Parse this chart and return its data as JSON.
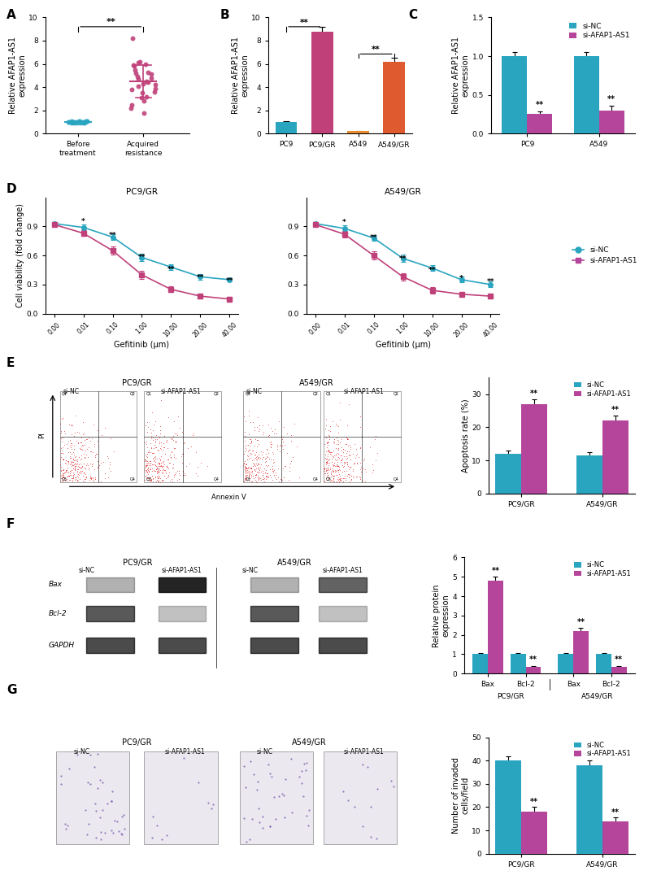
{
  "panel_A": {
    "before_treatment": [
      1.0,
      1.05,
      0.95,
      1.1,
      0.9,
      1.02,
      0.98,
      1.08,
      0.92,
      1.03,
      0.97,
      1.06,
      0.94,
      1.01,
      0.99,
      1.04,
      0.96,
      1.07,
      0.93,
      1.0
    ],
    "acquired_resistance": [
      3.2,
      5.8,
      4.1,
      6.2,
      3.5,
      4.8,
      5.2,
      2.8,
      6.0,
      3.8,
      4.5,
      5.5,
      2.5,
      4.2,
      3.9,
      5.1,
      4.7,
      8.2,
      4.4,
      3.1,
      5.9,
      4.3,
      2.2,
      3.6,
      4.9,
      5.3,
      6.1,
      1.8
    ],
    "color_before": "#2aa5c0",
    "color_acquired": "#c0417a",
    "ylabel": "Relative AFAP1-AS1\nexpression",
    "xlabel_before": "Before\ntreatment",
    "xlabel_acquired": "Acquired\nresistance",
    "ylim": [
      0,
      10
    ]
  },
  "panel_B": {
    "categories": [
      "PC9",
      "PC9/GR",
      "A549",
      "A549/GR"
    ],
    "values": [
      1.0,
      8.8,
      0.2,
      6.2
    ],
    "errors": [
      0.1,
      0.4,
      0.05,
      0.3
    ],
    "colors": [
      "#2aa5c0",
      "#c0417a",
      "#e88a2e",
      "#e05a30"
    ],
    "ylabel": "Relative AFAP1-AS1\nexpression",
    "ylim": [
      0,
      10
    ]
  },
  "panel_C": {
    "categories_main": [
      "PC9",
      "A549"
    ],
    "values_siNC": [
      1.0,
      1.0
    ],
    "values_siAFAP": [
      0.25,
      0.3
    ],
    "errors_siNC": [
      0.05,
      0.05
    ],
    "errors_siAFAP": [
      0.04,
      0.06
    ],
    "color_siNC": "#2aa5c0",
    "color_siAFAP": "#b5449b",
    "ylabel": "Relative AFAP1-AS1\nexpression",
    "ylim": [
      0.0,
      1.5
    ],
    "legend_siNC": "si-NC",
    "legend_siAFAP": "si-AFAP1-AS1"
  },
  "panel_D_PC9GR": {
    "gefitinib": [
      0.0,
      0.01,
      0.1,
      1.0,
      10.0,
      20.0,
      40.0
    ],
    "siNC": [
      0.93,
      0.89,
      0.79,
      0.58,
      0.48,
      0.38,
      0.35
    ],
    "siAFAP": [
      0.92,
      0.83,
      0.65,
      0.4,
      0.25,
      0.18,
      0.15
    ],
    "errors_siNC": [
      0.02,
      0.03,
      0.03,
      0.04,
      0.03,
      0.03,
      0.02
    ],
    "errors_siAFAP": [
      0.02,
      0.03,
      0.04,
      0.04,
      0.03,
      0.02,
      0.02
    ],
    "title": "PC9/GR",
    "xlabel": "Gefitinib (μm)",
    "ylabel": "Cell viability (fold change)",
    "color_siNC": "#2aa5c0",
    "color_siAFAP": "#c0417a",
    "sig_positions": [
      0.01,
      0.1,
      1.0,
      10.0,
      20.0,
      40.0
    ],
    "sig_labels": [
      "*",
      "**",
      "**",
      "**",
      "**",
      "**"
    ]
  },
  "panel_D_A549GR": {
    "gefitinib": [
      0.0,
      0.01,
      0.1,
      1.0,
      10.0,
      20.0,
      40.0
    ],
    "siNC": [
      0.93,
      0.88,
      0.78,
      0.57,
      0.47,
      0.35,
      0.3
    ],
    "siAFAP": [
      0.92,
      0.82,
      0.6,
      0.38,
      0.24,
      0.2,
      0.18
    ],
    "errors_siNC": [
      0.02,
      0.03,
      0.03,
      0.04,
      0.03,
      0.03,
      0.03
    ],
    "errors_siAFAP": [
      0.02,
      0.03,
      0.04,
      0.04,
      0.03,
      0.02,
      0.02
    ],
    "title": "A549/GR",
    "xlabel": "Gefitinib (μm)",
    "ylabel": "Cell viability (fold change)",
    "color_siNC": "#2aa5c0",
    "color_siAFAP": "#c0417a",
    "sig_positions": [
      0.01,
      0.1,
      1.0,
      10.0,
      20.0,
      40.0
    ],
    "sig_labels": [
      "*",
      "**",
      "**",
      "**",
      "*",
      "**"
    ]
  },
  "panel_E_bar": {
    "categories": [
      "PC9/GR",
      "A549/GR"
    ],
    "siNC": [
      12.0,
      11.5
    ],
    "siAFAP": [
      27.0,
      22.0
    ],
    "errors_siNC": [
      1.0,
      1.0
    ],
    "errors_siAFAP": [
      1.5,
      1.5
    ],
    "color_siNC": "#2aa5c0",
    "color_siAFAP": "#b5449b",
    "ylabel": "Apoptosis rate (%)",
    "ylim": [
      0,
      35
    ]
  },
  "panel_F_bar": {
    "groups": [
      "Bax",
      "Bcl-2",
      "Bax",
      "Bcl-2"
    ],
    "group_labels": [
      "PC9/GR",
      "A549/GR"
    ],
    "siNC": [
      1.0,
      1.0,
      1.0,
      1.0
    ],
    "siAFAP": [
      4.8,
      0.35,
      2.2,
      0.35
    ],
    "errors_siNC": [
      0.08,
      0.08,
      0.08,
      0.08
    ],
    "errors_siAFAP": [
      0.2,
      0.05,
      0.15,
      0.05
    ],
    "color_siNC": "#2aa5c0",
    "color_siAFAP": "#b5449b",
    "ylabel": "Relative protein\nexpression",
    "ylim": [
      0,
      6
    ]
  },
  "panel_G_bar": {
    "categories": [
      "PC9/GR",
      "A549/GR"
    ],
    "siNC": [
      40.0,
      38.0
    ],
    "siAFAP": [
      18.0,
      14.0
    ],
    "errors_siNC": [
      2.0,
      2.0
    ],
    "errors_siAFAP": [
      2.0,
      1.5
    ],
    "color_siNC": "#2aa5c0",
    "color_siAFAP": "#b5449b",
    "ylabel": "Number of invaded\ncells/field",
    "ylim": [
      0,
      50
    ]
  },
  "colors": {
    "siNC": "#2aa5c0",
    "siAFAP": "#b5449b",
    "before": "#2aa5c0",
    "acquired": "#c0417a"
  }
}
